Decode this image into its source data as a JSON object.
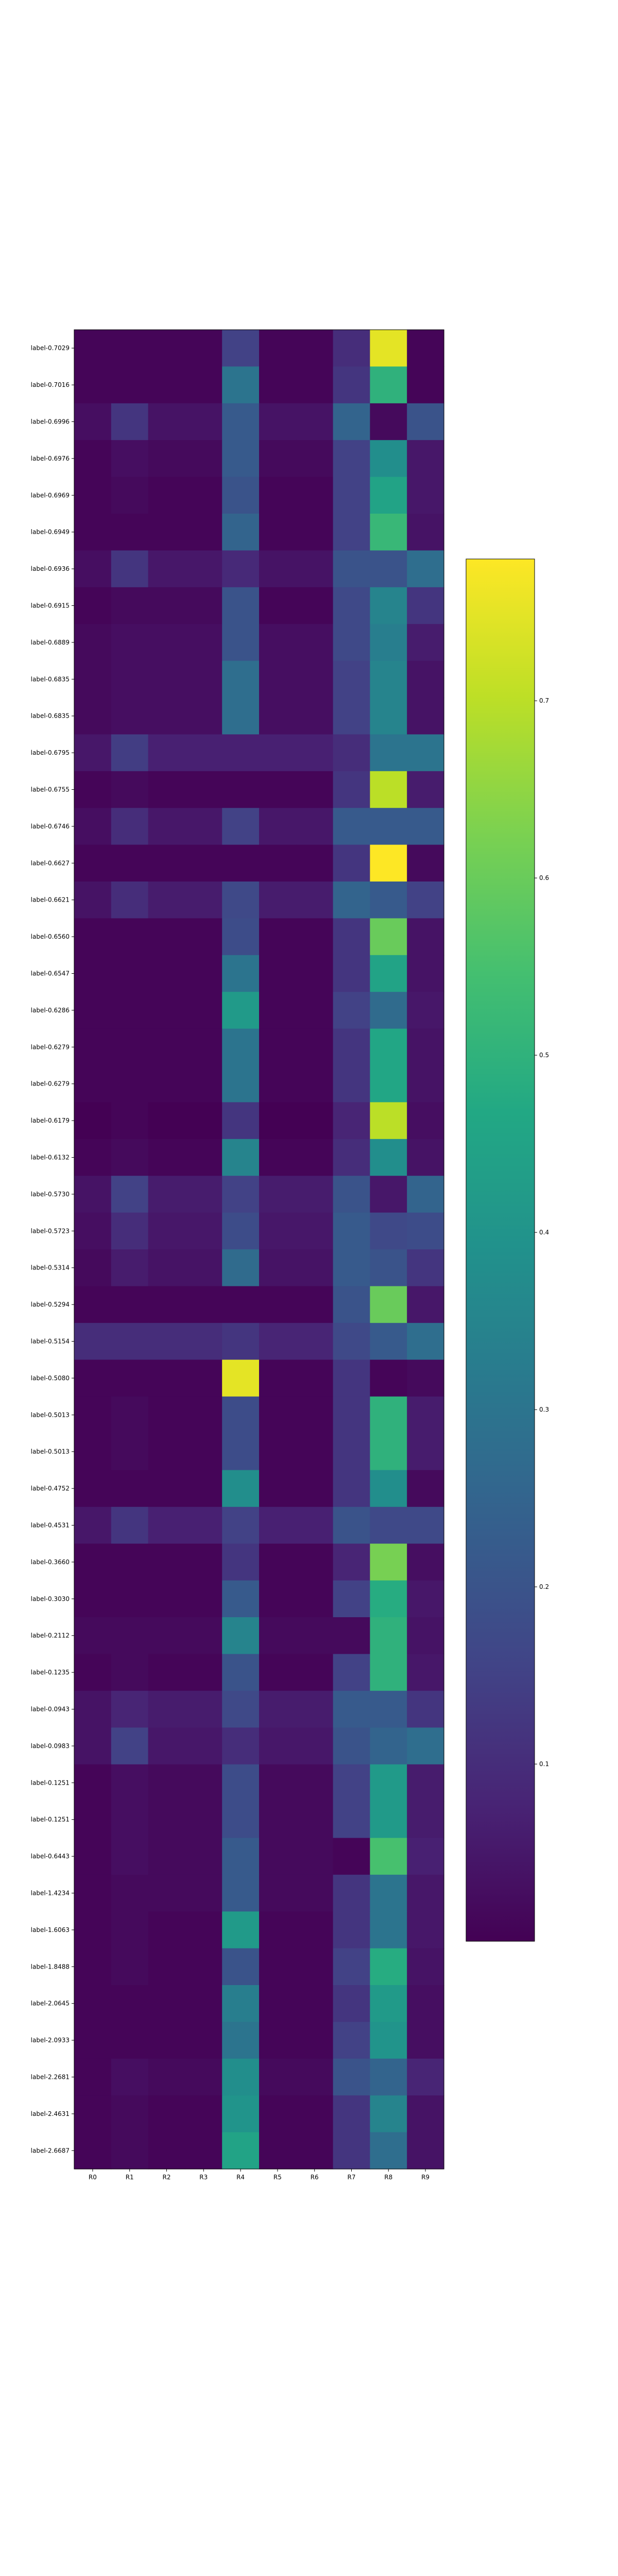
{
  "chart_data": {
    "type": "heatmap",
    "title": "",
    "xlabel": "",
    "ylabel": "",
    "colormap": "viridis",
    "columns": [
      "R0",
      "R1",
      "R2",
      "R3",
      "R4",
      "R5",
      "R6",
      "R7",
      "R8",
      "R9"
    ],
    "rows": [
      "label-0.7029",
      "label-0.7016",
      "label-0.6996",
      "label-0.6976",
      "label-0.6969",
      "label-0.6949",
      "label-0.6936",
      "label-0.6915",
      "label-0.6889",
      "label-0.6835",
      "label-0.6835",
      "label-0.6795",
      "label-0.6755",
      "label-0.6746",
      "label-0.6627",
      "label-0.6621",
      "label-0.6560",
      "label-0.6547",
      "label-0.6286",
      "label-0.6279",
      "label-0.6279",
      "label-0.6179",
      "label-0.6132",
      "label-0.5730",
      "label-0.5723",
      "label-0.5314",
      "label-0.5294",
      "label-0.5154",
      "label-0.5080",
      "label-0.5013",
      "label-0.5013",
      "label-0.4752",
      "label-0.4531",
      "label-0.3660",
      "label-0.3030",
      "label-0.2112",
      "label-0.1235",
      "label-0.0943",
      "label-0.0983",
      "label-0.1251",
      "label-0.1251",
      "label-0.6443",
      "label-1.4234",
      "label-1.6063",
      "label-1.8488",
      "label-2.0645",
      "label-2.0933",
      "label-2.2681",
      "label-2.4631",
      "label-2.6687"
    ],
    "values": [
      [
        0.01,
        0.01,
        0.01,
        0.01,
        0.15,
        0.01,
        0.01,
        0.1,
        0.75,
        0.01
      ],
      [
        0.01,
        0.01,
        0.01,
        0.01,
        0.3,
        0.01,
        0.01,
        0.12,
        0.5,
        0.01
      ],
      [
        0.03,
        0.12,
        0.04,
        0.04,
        0.22,
        0.04,
        0.04,
        0.25,
        0.02,
        0.2
      ],
      [
        0.01,
        0.03,
        0.02,
        0.02,
        0.22,
        0.02,
        0.02,
        0.15,
        0.38,
        0.05
      ],
      [
        0.01,
        0.02,
        0.01,
        0.01,
        0.2,
        0.01,
        0.01,
        0.15,
        0.45,
        0.05
      ],
      [
        0.01,
        0.01,
        0.01,
        0.01,
        0.25,
        0.01,
        0.01,
        0.15,
        0.52,
        0.04
      ],
      [
        0.03,
        0.12,
        0.05,
        0.05,
        0.09,
        0.04,
        0.04,
        0.2,
        0.2,
        0.28
      ],
      [
        0.01,
        0.02,
        0.02,
        0.02,
        0.2,
        0.01,
        0.01,
        0.17,
        0.35,
        0.12
      ],
      [
        0.02,
        0.03,
        0.03,
        0.03,
        0.2,
        0.03,
        0.03,
        0.17,
        0.33,
        0.06
      ],
      [
        0.02,
        0.03,
        0.03,
        0.03,
        0.28,
        0.03,
        0.03,
        0.15,
        0.35,
        0.04
      ],
      [
        0.02,
        0.03,
        0.03,
        0.03,
        0.28,
        0.03,
        0.03,
        0.15,
        0.35,
        0.04
      ],
      [
        0.05,
        0.14,
        0.07,
        0.07,
        0.07,
        0.07,
        0.07,
        0.1,
        0.3,
        0.3
      ],
      [
        0.01,
        0.02,
        0.01,
        0.01,
        0.01,
        0.01,
        0.01,
        0.12,
        0.7,
        0.06
      ],
      [
        0.03,
        0.1,
        0.05,
        0.05,
        0.15,
        0.05,
        0.05,
        0.22,
        0.22,
        0.22
      ],
      [
        0.01,
        0.01,
        0.01,
        0.01,
        0.01,
        0.01,
        0.01,
        0.12,
        0.78,
        0.02
      ],
      [
        0.04,
        0.1,
        0.06,
        0.06,
        0.17,
        0.06,
        0.06,
        0.25,
        0.22,
        0.15
      ],
      [
        0.01,
        0.01,
        0.01,
        0.01,
        0.18,
        0.01,
        0.01,
        0.12,
        0.6,
        0.04
      ],
      [
        0.01,
        0.01,
        0.01,
        0.01,
        0.3,
        0.01,
        0.01,
        0.12,
        0.45,
        0.04
      ],
      [
        0.01,
        0.01,
        0.01,
        0.01,
        0.42,
        0.01,
        0.01,
        0.15,
        0.27,
        0.05
      ],
      [
        0.01,
        0.01,
        0.01,
        0.01,
        0.3,
        0.01,
        0.01,
        0.12,
        0.46,
        0.04
      ],
      [
        0.01,
        0.01,
        0.01,
        0.01,
        0.3,
        0.01,
        0.01,
        0.12,
        0.46,
        0.04
      ],
      [
        0.0,
        0.01,
        0.0,
        0.0,
        0.12,
        0.0,
        0.0,
        0.08,
        0.7,
        0.03
      ],
      [
        0.01,
        0.02,
        0.01,
        0.01,
        0.35,
        0.01,
        0.01,
        0.1,
        0.38,
        0.04
      ],
      [
        0.04,
        0.15,
        0.06,
        0.06,
        0.15,
        0.06,
        0.06,
        0.2,
        0.05,
        0.25
      ],
      [
        0.03,
        0.1,
        0.05,
        0.05,
        0.18,
        0.05,
        0.05,
        0.22,
        0.17,
        0.18
      ],
      [
        0.02,
        0.06,
        0.04,
        0.04,
        0.27,
        0.04,
        0.04,
        0.22,
        0.2,
        0.12
      ],
      [
        0.01,
        0.01,
        0.01,
        0.01,
        0.01,
        0.01,
        0.01,
        0.2,
        0.6,
        0.05
      ],
      [
        0.1,
        0.1,
        0.1,
        0.1,
        0.12,
        0.08,
        0.08,
        0.17,
        0.22,
        0.28
      ],
      [
        0.01,
        0.01,
        0.01,
        0.01,
        0.75,
        0.01,
        0.01,
        0.12,
        0.01,
        0.02
      ],
      [
        0.01,
        0.02,
        0.01,
        0.01,
        0.18,
        0.01,
        0.01,
        0.12,
        0.5,
        0.06
      ],
      [
        0.01,
        0.02,
        0.01,
        0.01,
        0.18,
        0.01,
        0.01,
        0.12,
        0.5,
        0.06
      ],
      [
        0.01,
        0.01,
        0.01,
        0.01,
        0.38,
        0.01,
        0.01,
        0.12,
        0.38,
        0.02
      ],
      [
        0.05,
        0.12,
        0.07,
        0.07,
        0.15,
        0.07,
        0.07,
        0.2,
        0.17,
        0.17
      ],
      [
        0.01,
        0.01,
        0.01,
        0.01,
        0.12,
        0.01,
        0.01,
        0.08,
        0.62,
        0.03
      ],
      [
        0.01,
        0.01,
        0.01,
        0.01,
        0.22,
        0.01,
        0.01,
        0.15,
        0.48,
        0.05
      ],
      [
        0.02,
        0.02,
        0.02,
        0.02,
        0.35,
        0.02,
        0.02,
        0.02,
        0.5,
        0.04
      ],
      [
        0.01,
        0.02,
        0.01,
        0.01,
        0.2,
        0.01,
        0.01,
        0.15,
        0.5,
        0.05
      ],
      [
        0.04,
        0.08,
        0.06,
        0.06,
        0.17,
        0.06,
        0.06,
        0.22,
        0.22,
        0.12
      ],
      [
        0.04,
        0.15,
        0.05,
        0.05,
        0.1,
        0.05,
        0.05,
        0.2,
        0.25,
        0.28
      ],
      [
        0.01,
        0.03,
        0.02,
        0.02,
        0.18,
        0.02,
        0.02,
        0.15,
        0.42,
        0.06
      ],
      [
        0.01,
        0.03,
        0.02,
        0.02,
        0.18,
        0.02,
        0.02,
        0.15,
        0.42,
        0.06
      ],
      [
        0.01,
        0.03,
        0.02,
        0.02,
        0.22,
        0.02,
        0.02,
        0.01,
        0.55,
        0.07
      ],
      [
        0.01,
        0.02,
        0.02,
        0.02,
        0.22,
        0.02,
        0.02,
        0.12,
        0.3,
        0.05
      ],
      [
        0.01,
        0.02,
        0.01,
        0.01,
        0.42,
        0.01,
        0.01,
        0.12,
        0.3,
        0.05
      ],
      [
        0.01,
        0.02,
        0.01,
        0.01,
        0.2,
        0.01,
        0.01,
        0.15,
        0.48,
        0.04
      ],
      [
        0.01,
        0.01,
        0.01,
        0.01,
        0.33,
        0.01,
        0.01,
        0.12,
        0.42,
        0.03
      ],
      [
        0.01,
        0.01,
        0.01,
        0.01,
        0.3,
        0.01,
        0.01,
        0.15,
        0.4,
        0.03
      ],
      [
        0.01,
        0.03,
        0.02,
        0.02,
        0.38,
        0.02,
        0.02,
        0.2,
        0.25,
        0.08
      ],
      [
        0.01,
        0.02,
        0.01,
        0.01,
        0.4,
        0.01,
        0.01,
        0.12,
        0.35,
        0.04
      ],
      [
        0.01,
        0.02,
        0.01,
        0.01,
        0.45,
        0.01,
        0.01,
        0.12,
        0.28,
        0.04
      ]
    ],
    "colorbar": {
      "range": [
        0.0,
        0.78
      ],
      "ticks": [
        0.1,
        0.2,
        0.3,
        0.4,
        0.5,
        0.6,
        0.7
      ],
      "tick_labels": [
        "0.1",
        "0.2",
        "0.3",
        "0.4",
        "0.5",
        "0.6",
        "0.7"
      ]
    }
  }
}
